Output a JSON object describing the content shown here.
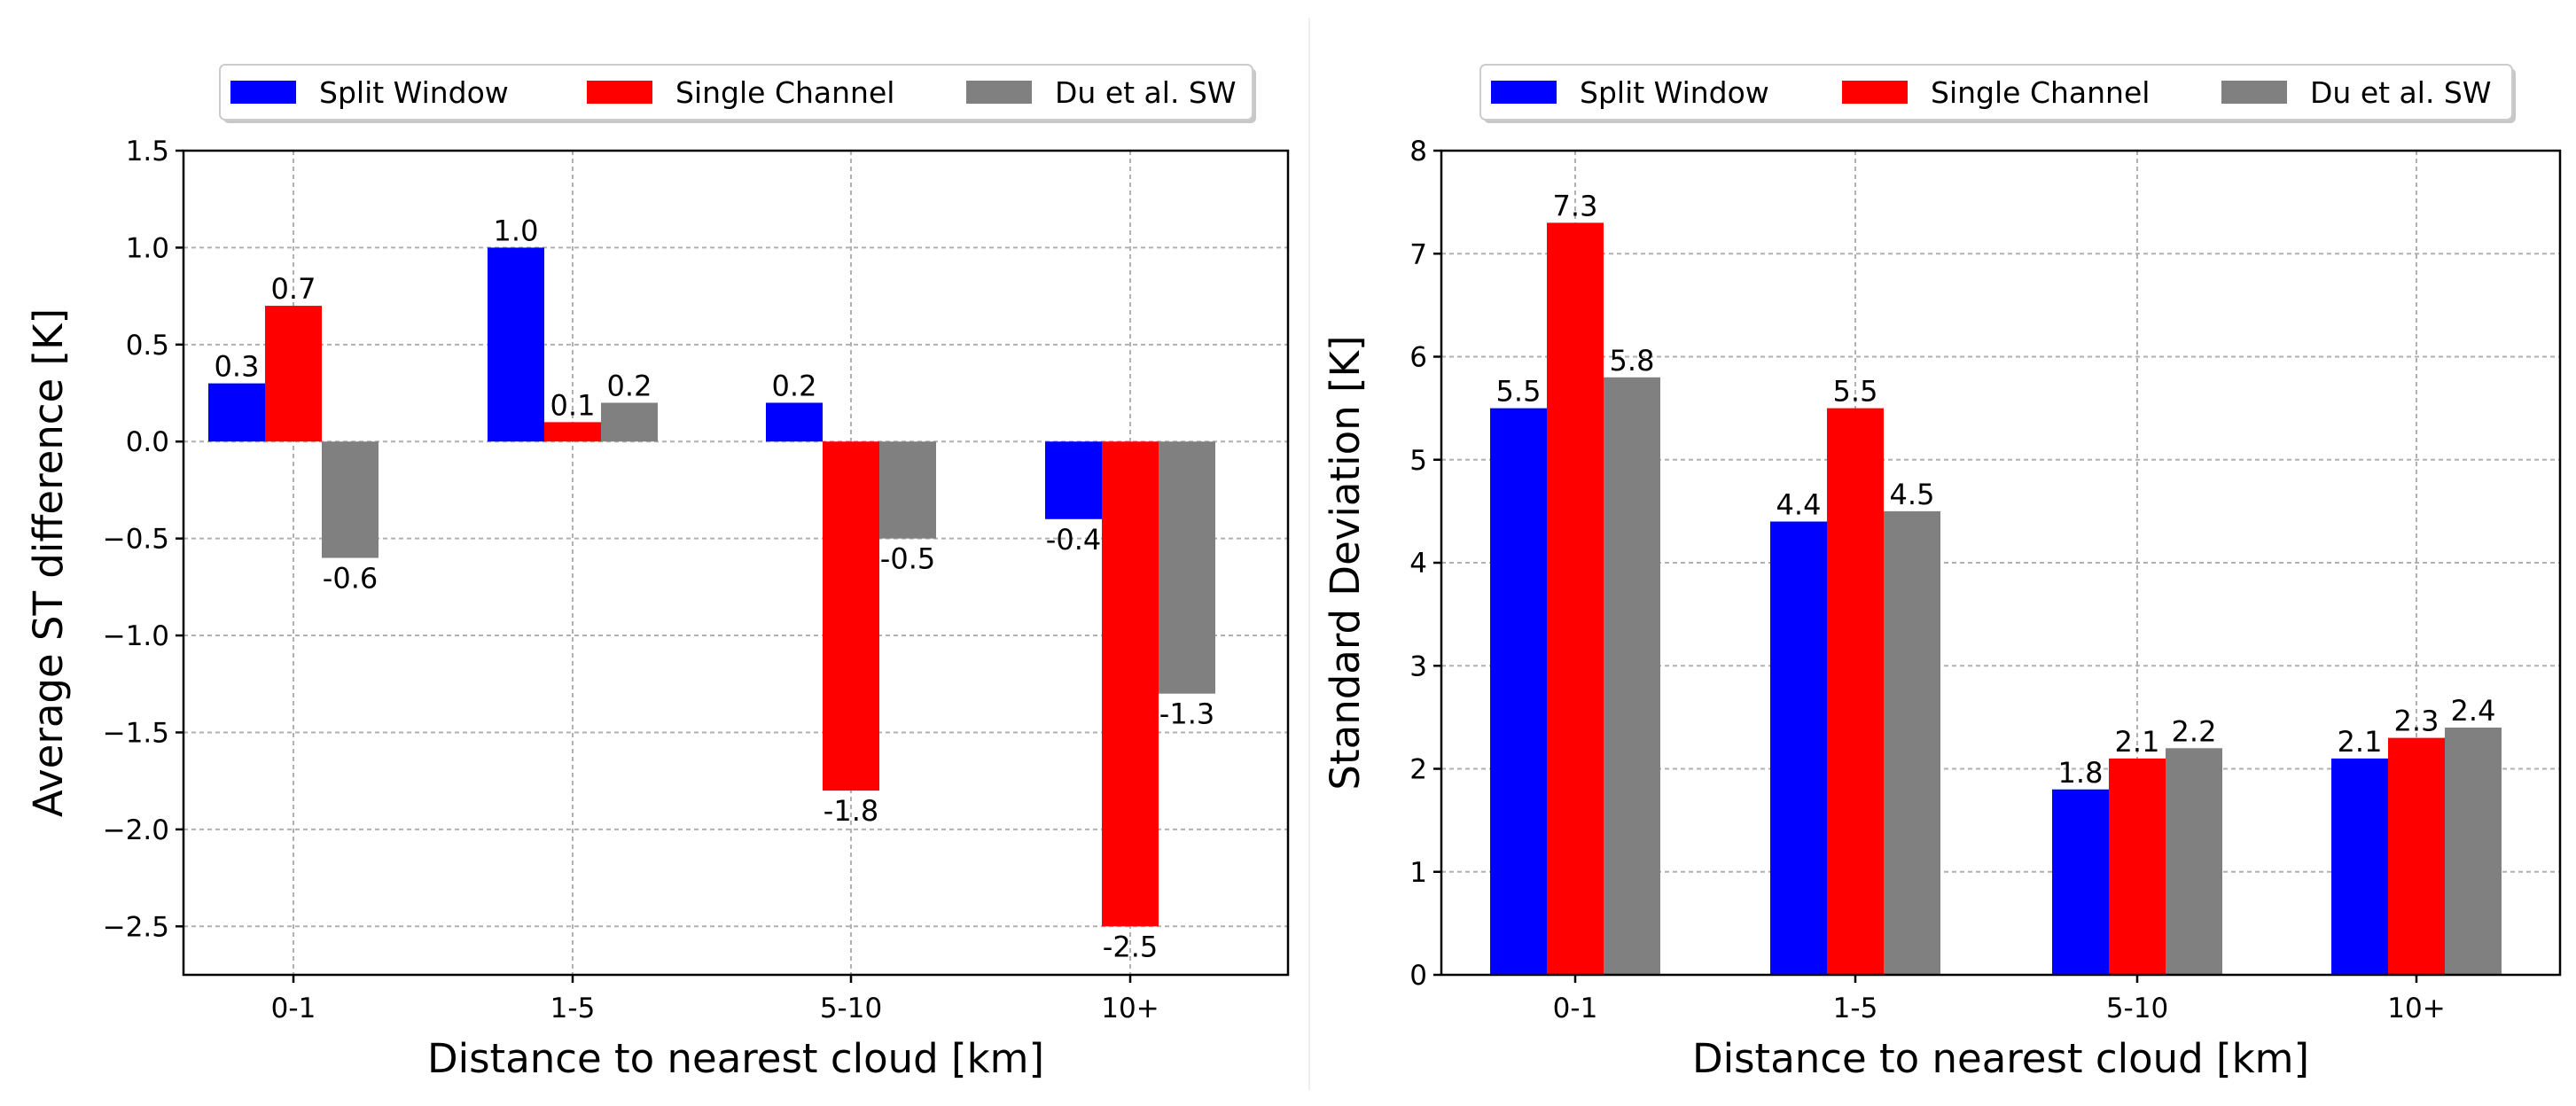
{
  "chart_data": [
    {
      "type": "bar",
      "categories": [
        "0-1",
        "1-5",
        "5-10",
        "10+"
      ],
      "series": [
        {
          "name": "Split Window",
          "color": "#0000ff",
          "values": [
            0.3,
            1.0,
            0.2,
            -0.4
          ],
          "labels": [
            "0.3",
            "1.0",
            "0.2",
            "-0.4"
          ]
        },
        {
          "name": "Single Channel",
          "color": "#ff0000",
          "values": [
            0.7,
            0.1,
            -1.8,
            -2.5
          ],
          "labels": [
            "0.7",
            "0.1",
            "-1.8",
            "-2.5"
          ]
        },
        {
          "name": "Du et al. SW",
          "color": "#808080",
          "values": [
            -0.6,
            0.2,
            -0.5,
            -1.3
          ],
          "labels": [
            "-0.6",
            "0.2",
            "-0.5",
            "-1.3"
          ]
        }
      ],
      "xlabel": "Distance to nearest cloud [km]",
      "ylabel": "Average ST difference [K]",
      "ylim": [
        -2.75,
        1.5
      ],
      "yticks": [
        1.5,
        1.0,
        0.5,
        0.0,
        -0.5,
        -1.0,
        -1.5,
        -2.0,
        -2.5
      ],
      "ytick_labels": [
        "1.5",
        "1.0",
        "0.5",
        "0.0",
        "−0.5",
        "−1.0",
        "−1.5",
        "−2.0",
        "−2.5"
      ],
      "grid": true,
      "legend": "top"
    },
    {
      "type": "bar",
      "categories": [
        "0-1",
        "1-5",
        "5-10",
        "10+"
      ],
      "series": [
        {
          "name": "Split Window",
          "color": "#0000ff",
          "values": [
            5.5,
            4.4,
            1.8,
            2.1
          ],
          "labels": [
            "5.5",
            "4.4",
            "1.8",
            "2.1"
          ]
        },
        {
          "name": "Single Channel",
          "color": "#ff0000",
          "values": [
            7.3,
            5.5,
            2.1,
            2.3
          ],
          "labels": [
            "7.3",
            "5.5",
            "2.1",
            "2.3"
          ]
        },
        {
          "name": "Du et al. SW",
          "color": "#808080",
          "values": [
            5.8,
            4.5,
            2.2,
            2.4
          ],
          "labels": [
            "5.8",
            "4.5",
            "2.2",
            "2.4"
          ]
        }
      ],
      "xlabel": "Distance to nearest cloud [km]",
      "ylabel": "Standard Deviation [K]",
      "ylim": [
        0,
        8
      ],
      "yticks": [
        0,
        1,
        2,
        3,
        4,
        5,
        6,
        7,
        8
      ],
      "ytick_labels": [
        "0",
        "1",
        "2",
        "3",
        "4",
        "5",
        "6",
        "7",
        "8"
      ],
      "grid": true,
      "legend": "top"
    }
  ]
}
